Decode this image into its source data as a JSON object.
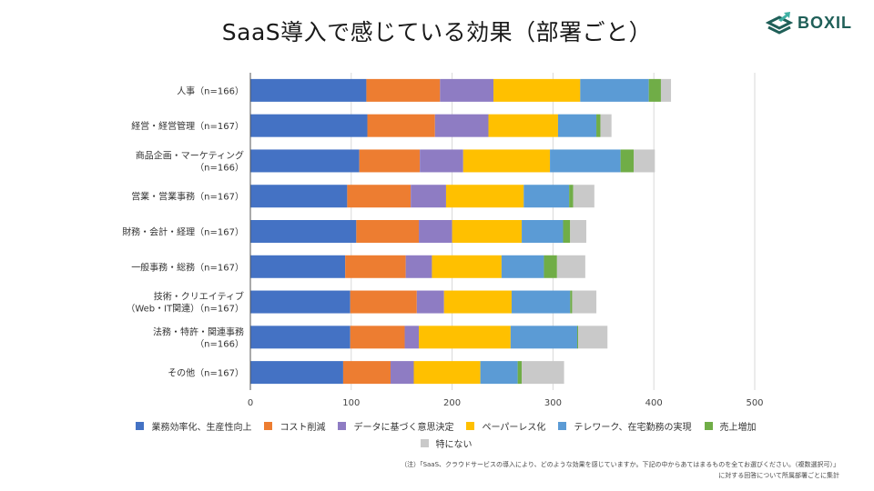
{
  "header": {
    "title": "SaaS導入で感じている効果（部署ごと）",
    "logo_text": "BOXIL"
  },
  "chart_data": {
    "type": "bar",
    "orientation": "horizontal",
    "stacked": true,
    "title": "SaaS導入で感じている効果（部署ごと）",
    "xlabel": "",
    "ylabel": "",
    "xlim": [
      0,
      500
    ],
    "xticks": [
      "0",
      "100",
      "200",
      "300",
      "400",
      "500"
    ],
    "grid": true,
    "legend_position": "bottom",
    "categories": [
      "人事（n=166）",
      "経営・経営管理（n=167）",
      "商品企画・マーケティング\n（n=166）",
      "営業・営業事務（n=167）",
      "財務・会計・経理（n=167）",
      "一般事務・総務（n=167）",
      "技術・クリエイティブ\n（Web・IT関連）（n=167）",
      "法務・特許・関連事務\n（n=166）",
      "その他（n=167）"
    ],
    "series": [
      {
        "name": "業務効率化、生産性向上",
        "color": "#4472c4",
        "values": [
          115,
          116,
          108,
          96,
          105,
          94,
          99,
          99,
          92
        ]
      },
      {
        "name": "コスト削減",
        "color": "#ed7d31",
        "values": [
          73,
          67,
          60,
          63,
          62,
          60,
          66,
          54,
          47
        ]
      },
      {
        "name": "データに基づく意思決定",
        "color": "#8e7cc3",
        "values": [
          53,
          53,
          43,
          35,
          33,
          26,
          27,
          14,
          23
        ]
      },
      {
        "name": "ペーパーレス化",
        "color": "#ffc000",
        "values": [
          86,
          69,
          86,
          77,
          69,
          69,
          67,
          91,
          66
        ]
      },
      {
        "name": "テレワーク、在宅勤務の実現",
        "color": "#5b9bd5",
        "values": [
          68,
          38,
          70,
          45,
          41,
          42,
          58,
          66,
          37
        ]
      },
      {
        "name": "売上増加",
        "color": "#70ad47",
        "values": [
          12,
          4,
          13,
          4,
          7,
          13,
          2,
          1,
          4
        ]
      },
      {
        "name": "特にない",
        "color": "#c9c9c9",
        "values": [
          10,
          11,
          21,
          21,
          16,
          28,
          24,
          29,
          42
        ]
      }
    ]
  },
  "footnote": {
    "line1": "（注）「SaaS、クラウドサービスの導入により、どのような効果を感じていますか。下記の中からあてはまるものを全てお選びください。（複数選択可）」",
    "line2": "に対する回答について所属部署ごとに集計"
  }
}
